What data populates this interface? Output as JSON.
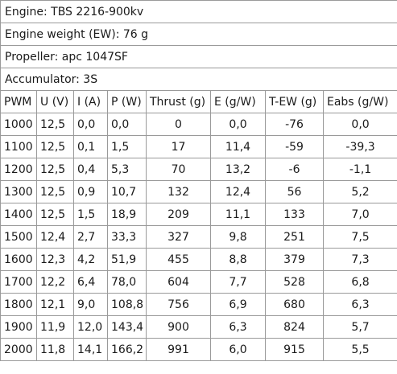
{
  "info": {
    "engine": "Engine: TBS 2216-900kv",
    "engine_weight": "Engine weight (EW): 76 g",
    "propeller": "Propeller: apc 1047SF",
    "accumulator": "Accumulator: 3S"
  },
  "table": {
    "headers": [
      "PWM",
      "U (V)",
      "I (A)",
      "P (W)",
      "Thrust (g)",
      "E (g/W)",
      "T-EW (g)",
      "Eabs (g/W)"
    ],
    "rows": [
      [
        "1000",
        "12,5",
        "0,0",
        "0,0",
        "0",
        "0,0",
        "-76",
        "0,0"
      ],
      [
        "1100",
        "12,5",
        "0,1",
        "1,5",
        "17",
        "11,4",
        "-59",
        "-39,3"
      ],
      [
        "1200",
        "12,5",
        "0,4",
        "5,3",
        "70",
        "13,2",
        "-6",
        "-1,1"
      ],
      [
        "1300",
        "12,5",
        "0,9",
        "10,7",
        "132",
        "12,4",
        "56",
        "5,2"
      ],
      [
        "1400",
        "12,5",
        "1,5",
        "18,9",
        "209",
        "11,1",
        "133",
        "7,0"
      ],
      [
        "1500",
        "12,4",
        "2,7",
        "33,3",
        "327",
        "9,8",
        "251",
        "7,5"
      ],
      [
        "1600",
        "12,3",
        "4,2",
        "51,9",
        "455",
        "8,8",
        "379",
        "7,3"
      ],
      [
        "1700",
        "12,2",
        "6,4",
        "78,0",
        "604",
        "7,7",
        "528",
        "6,8"
      ],
      [
        "1800",
        "12,1",
        "9,0",
        "108,8",
        "756",
        "6,9",
        "680",
        "6,3"
      ],
      [
        "1900",
        "11,9",
        "12,0",
        "143,4",
        "900",
        "6,3",
        "824",
        "5,7"
      ],
      [
        "2000",
        "11,8",
        "14,1",
        "166,2",
        "991",
        "6,0",
        "915",
        "5,5"
      ]
    ]
  }
}
